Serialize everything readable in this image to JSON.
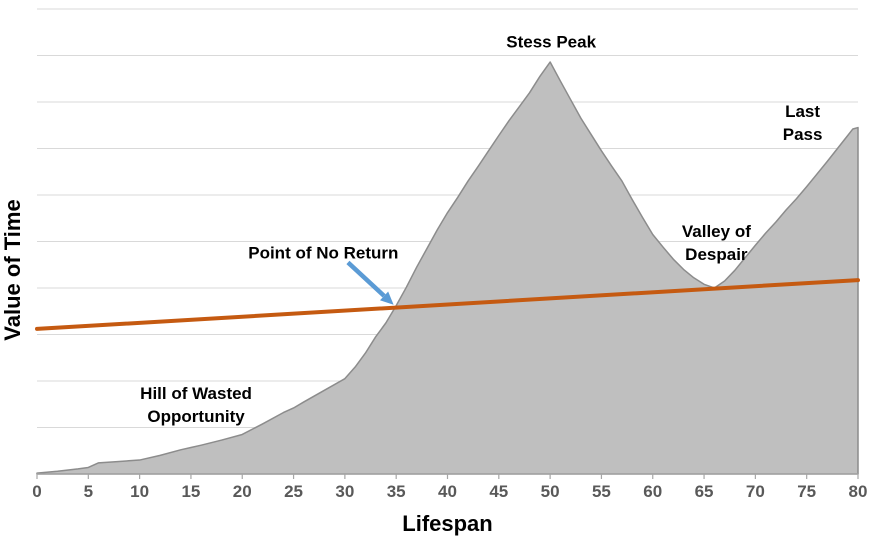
{
  "chart_data": {
    "type": "area",
    "title": "",
    "xlabel": "Lifespan",
    "ylabel": "Value of Time",
    "xlim": [
      0,
      80
    ],
    "ylim": [
      0,
      10
    ],
    "x_ticks": [
      0,
      5,
      10,
      15,
      20,
      25,
      30,
      35,
      40,
      45,
      50,
      55,
      60,
      65,
      70,
      75,
      80
    ],
    "grid": "horizontal",
    "gridline_step": 1,
    "legend": "none",
    "series": [
      {
        "name": "value-of-time-curve",
        "type": "area",
        "fill": "#BFBFBF",
        "stroke": "#8C8C8C",
        "points": [
          [
            0,
            0.02
          ],
          [
            2,
            0.06
          ],
          [
            4,
            0.11
          ],
          [
            5,
            0.14
          ],
          [
            6,
            0.24
          ],
          [
            8,
            0.27
          ],
          [
            10,
            0.3
          ],
          [
            12,
            0.4
          ],
          [
            14,
            0.52
          ],
          [
            15,
            0.57
          ],
          [
            16,
            0.62
          ],
          [
            18,
            0.73
          ],
          [
            20,
            0.85
          ],
          [
            22,
            1.08
          ],
          [
            24,
            1.32
          ],
          [
            25,
            1.42
          ],
          [
            26,
            1.55
          ],
          [
            28,
            1.8
          ],
          [
            30,
            2.05
          ],
          [
            31,
            2.3
          ],
          [
            32,
            2.6
          ],
          [
            33,
            2.95
          ],
          [
            34,
            3.25
          ],
          [
            35,
            3.62
          ],
          [
            36,
            4.02
          ],
          [
            37,
            4.45
          ],
          [
            38,
            4.85
          ],
          [
            39,
            5.25
          ],
          [
            40,
            5.62
          ],
          [
            41,
            5.95
          ],
          [
            42,
            6.3
          ],
          [
            43,
            6.62
          ],
          [
            44,
            6.95
          ],
          [
            45,
            7.28
          ],
          [
            46,
            7.6
          ],
          [
            47,
            7.9
          ],
          [
            48,
            8.2
          ],
          [
            49,
            8.55
          ],
          [
            50,
            8.86
          ],
          [
            51,
            8.45
          ],
          [
            52,
            8.05
          ],
          [
            53,
            7.65
          ],
          [
            54,
            7.3
          ],
          [
            55,
            6.95
          ],
          [
            56,
            6.62
          ],
          [
            57,
            6.3
          ],
          [
            58,
            5.9
          ],
          [
            59,
            5.52
          ],
          [
            60,
            5.15
          ],
          [
            61,
            4.88
          ],
          [
            62,
            4.62
          ],
          [
            63,
            4.4
          ],
          [
            64,
            4.22
          ],
          [
            65,
            4.08
          ],
          [
            66,
            4.0
          ],
          [
            67,
            4.15
          ],
          [
            68,
            4.38
          ],
          [
            69,
            4.65
          ],
          [
            70,
            4.92
          ],
          [
            71,
            5.18
          ],
          [
            72,
            5.42
          ],
          [
            73,
            5.68
          ],
          [
            74,
            5.92
          ],
          [
            75,
            6.18
          ],
          [
            76,
            6.45
          ],
          [
            77,
            6.72
          ],
          [
            78,
            7.0
          ],
          [
            79,
            7.28
          ],
          [
            79.5,
            7.42
          ],
          [
            80,
            7.45
          ]
        ]
      },
      {
        "name": "baseline-trend",
        "type": "line",
        "stroke": "#C55A11",
        "points": [
          [
            0,
            3.12
          ],
          [
            80,
            4.17
          ]
        ]
      }
    ],
    "annotations": [
      {
        "id": "stress-peak",
        "label": "Stess Peak",
        "x": 50.1,
        "y": 9.27
      },
      {
        "id": "last-pass",
        "label": "Last Pass",
        "x": 74.6,
        "y": 7.53
      },
      {
        "id": "valley-of-despair",
        "label": "Valley of\nDespair",
        "x": 66.2,
        "y": 4.95
      },
      {
        "id": "point-of-no-return",
        "label": "Point of No Return",
        "x": 27.9,
        "y": 4.73
      },
      {
        "id": "hill-of-wasted-opportunity",
        "label": "Hill of Wasted\nOpportunity",
        "x": 15.5,
        "y": 1.47
      }
    ],
    "arrow": {
      "from": [
        30.3,
        4.55
      ],
      "to": [
        34.75,
        3.64
      ],
      "color": "#5B9BD5"
    },
    "colors": {
      "background": "#FFFFFF",
      "grid": "#D9D9D9",
      "axis": "#A6A6A6",
      "tick_label": "#595959",
      "annotation_text": "#000000",
      "area_fill": "#BFBFBF",
      "area_stroke": "#8C8C8C",
      "trend_line": "#C55A11",
      "arrow": "#5B9BD5"
    }
  }
}
